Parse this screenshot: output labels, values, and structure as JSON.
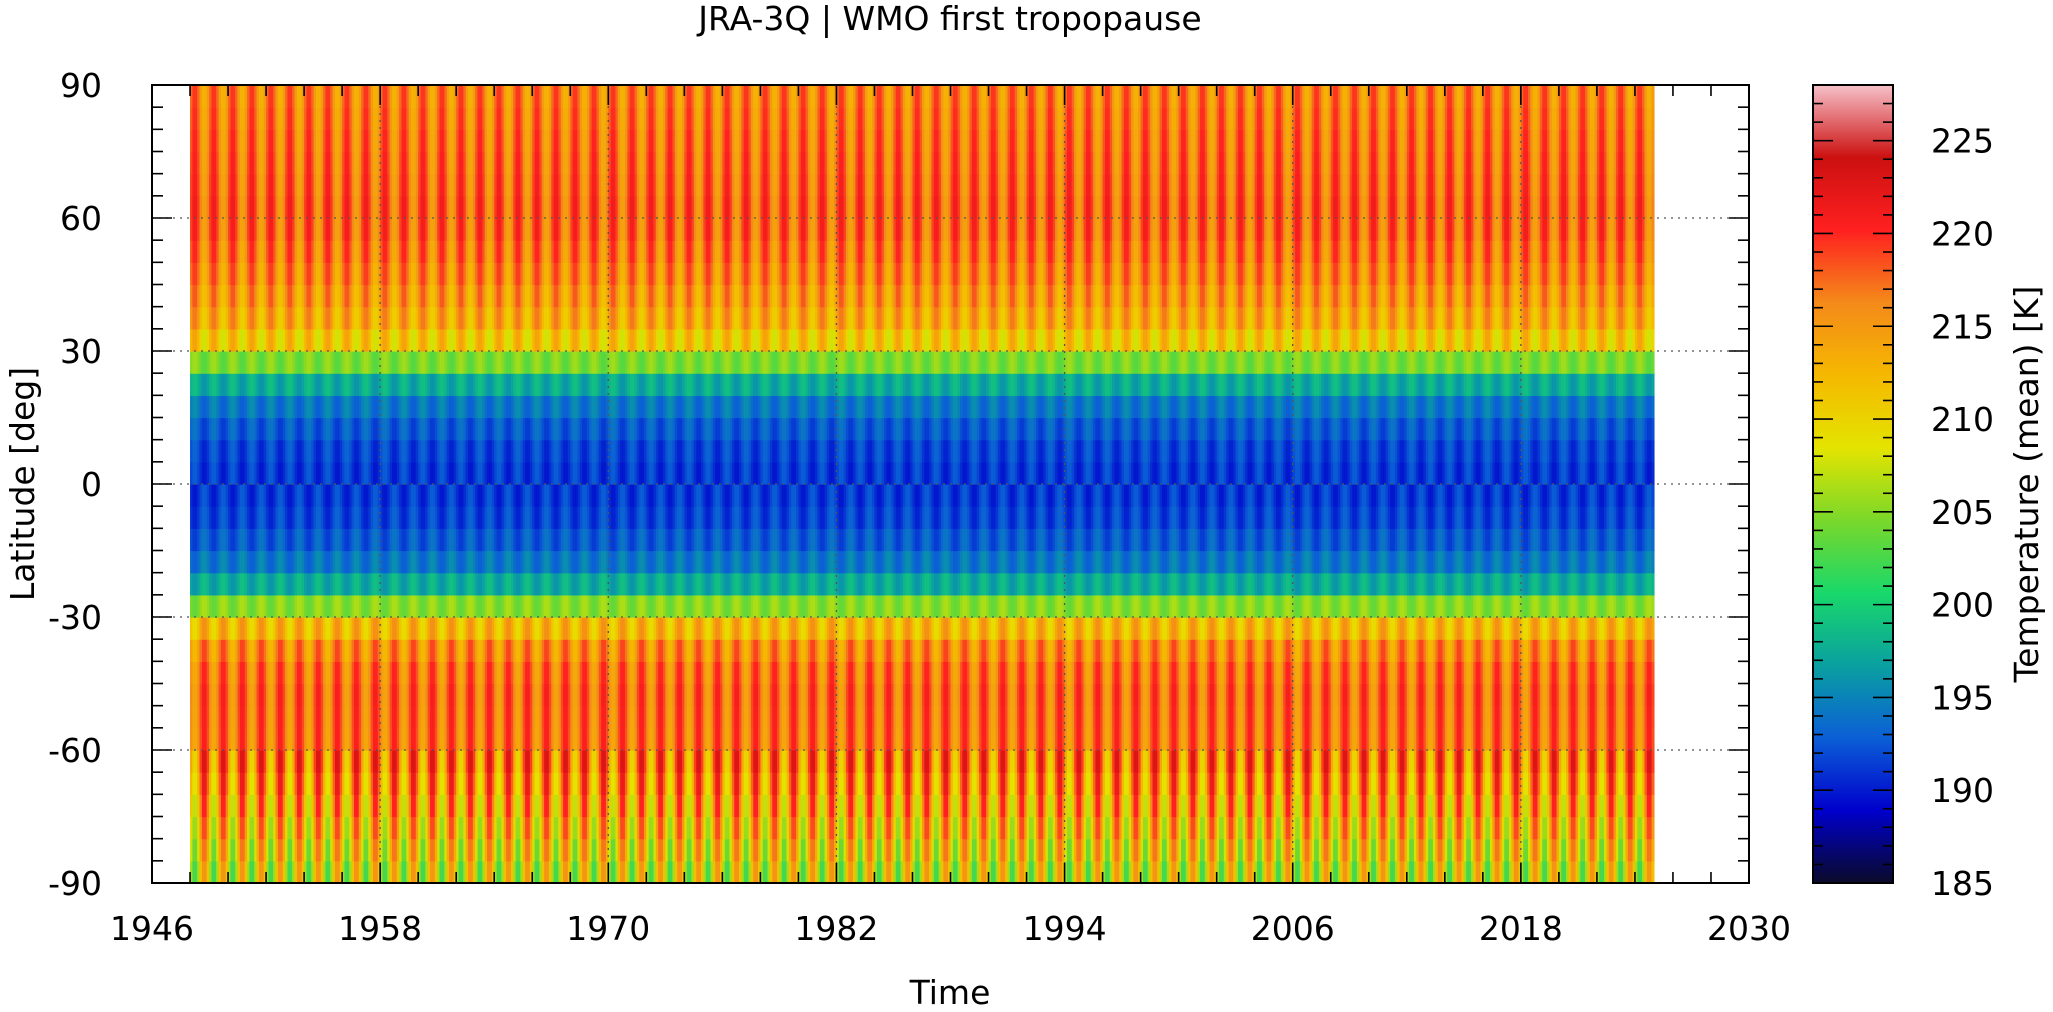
{
  "chart_data": {
    "type": "heatmap",
    "title": "JRA-3Q | WMO first tropopause",
    "xlabel": "Time",
    "ylabel": "Latitude [deg]",
    "colorbar_label": "Temperature (mean) [K]",
    "xlim": [
      1946,
      2030
    ],
    "ylim": [
      -90,
      90
    ],
    "x_ticks": [
      "1946",
      "1958",
      "1970",
      "1982",
      "1994",
      "2006",
      "2018",
      "2030"
    ],
    "y_ticks": [
      "90",
      "60",
      "30",
      "0",
      "-30",
      "-60",
      "-90"
    ],
    "colorbar_range": [
      185,
      228
    ],
    "colorbar_ticks": [
      "225",
      "220",
      "215",
      "210",
      "205",
      "200",
      "195",
      "190",
      "185"
    ],
    "data_x_range": [
      1948,
      2025
    ],
    "grid": true,
    "colormap": [
      "#0a0a2a",
      "#0000cc",
      "#0b5fd6",
      "#0aa0a0",
      "#19d86a",
      "#7ad82a",
      "#e4e400",
      "#f5b800",
      "#f48a1a",
      "#ff2020",
      "#cc1010",
      "#f6c0c8"
    ],
    "approx_mean_profile": {
      "lat": [
        -90,
        -75,
        -60,
        -45,
        -35,
        -30,
        -25,
        -20,
        -10,
        0,
        10,
        20,
        25,
        30,
        35,
        45,
        60,
        75,
        90
      ],
      "temp_K": [
        208,
        213,
        217,
        217.5,
        215,
        210,
        200,
        195,
        192,
        191,
        192,
        195,
        200,
        209,
        213,
        215.5,
        218,
        217,
        216
      ]
    }
  }
}
